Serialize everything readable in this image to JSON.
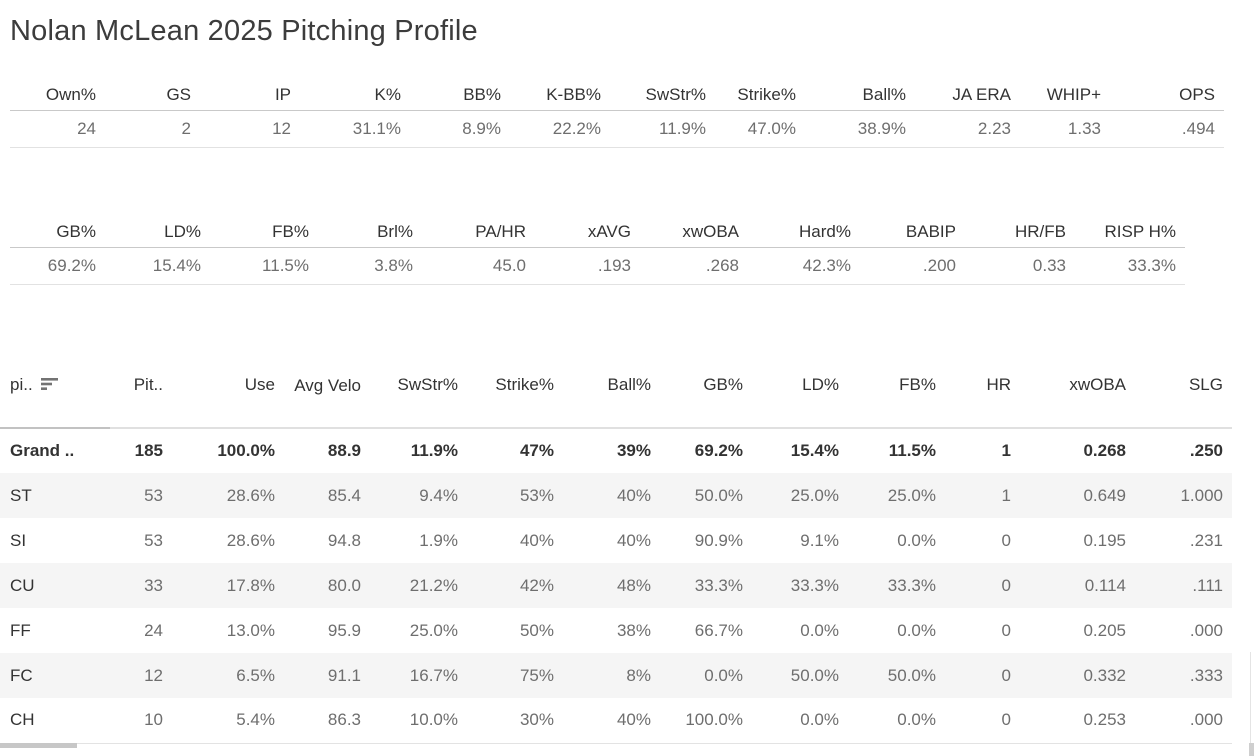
{
  "title": "Nolan McLean 2025 Pitching Profile",
  "colors": {
    "header_text": "#333333",
    "value_text": "#6e6e6e",
    "stripe_row": "#f5f5f5",
    "border_light": "#e2e2e2",
    "border_dark": "#c9c9c9",
    "scrollbar_thumb": "#c7c7c7"
  },
  "icons": {
    "sort": "sort-descending-icon"
  },
  "chart_data": [
    {
      "type": "table",
      "columns": [
        "Own%",
        "GS",
        "IP",
        "K%",
        "BB%",
        "K-BB%",
        "SwStr%",
        "Strike%",
        "Ball%",
        "JA ERA",
        "WHIP+",
        "OPS"
      ],
      "values": [
        "24",
        "2",
        "12",
        "31.1%",
        "8.9%",
        "22.2%",
        "11.9%",
        "47.0%",
        "38.9%",
        "2.23",
        "1.33",
        ".494"
      ]
    },
    {
      "type": "table",
      "columns": [
        "GB%",
        "LD%",
        "FB%",
        "Brl%",
        "PA/HR",
        "xAVG",
        "xwOBA",
        "Hard%",
        "BABIP",
        "HR/FB",
        "RISP H%"
      ],
      "values": [
        "69.2%",
        "15.4%",
        "11.5%",
        "3.8%",
        "45.0",
        ".193",
        ".268",
        "42.3%",
        ".200",
        "0.33",
        "33.3%"
      ]
    },
    {
      "type": "table",
      "row_header_label": "pi..",
      "columns": [
        "Pit..",
        "Use",
        "Avg Velo",
        "SwStr%",
        "Strike%",
        "Ball%",
        "GB%",
        "LD%",
        "FB%",
        "HR",
        "xwOBA",
        "SLG"
      ],
      "rows": [
        {
          "label": "Grand ..",
          "bold": true,
          "values": [
            "185",
            "100.0%",
            "88.9",
            "11.9%",
            "47%",
            "39%",
            "69.2%",
            "15.4%",
            "11.5%",
            "1",
            "0.268",
            ".250"
          ]
        },
        {
          "label": "ST",
          "values": [
            "53",
            "28.6%",
            "85.4",
            "9.4%",
            "53%",
            "40%",
            "50.0%",
            "25.0%",
            "25.0%",
            "1",
            "0.649",
            "1.000"
          ]
        },
        {
          "label": "SI",
          "values": [
            "53",
            "28.6%",
            "94.8",
            "1.9%",
            "40%",
            "40%",
            "90.9%",
            "9.1%",
            "0.0%",
            "0",
            "0.195",
            ".231"
          ]
        },
        {
          "label": "CU",
          "values": [
            "33",
            "17.8%",
            "80.0",
            "21.2%",
            "42%",
            "48%",
            "33.3%",
            "33.3%",
            "33.3%",
            "0",
            "0.114",
            ".111"
          ]
        },
        {
          "label": "FF",
          "values": [
            "24",
            "13.0%",
            "95.9",
            "25.0%",
            "50%",
            "38%",
            "66.7%",
            "0.0%",
            "0.0%",
            "0",
            "0.205",
            ".000"
          ]
        },
        {
          "label": "FC",
          "values": [
            "12",
            "6.5%",
            "91.1",
            "16.7%",
            "75%",
            "8%",
            "0.0%",
            "50.0%",
            "50.0%",
            "0",
            "0.332",
            ".333"
          ]
        },
        {
          "label": "CH",
          "values": [
            "10",
            "5.4%",
            "86.3",
            "10.0%",
            "30%",
            "40%",
            "100.0%",
            "0.0%",
            "0.0%",
            "0",
            "0.253",
            ".000"
          ]
        }
      ]
    }
  ]
}
